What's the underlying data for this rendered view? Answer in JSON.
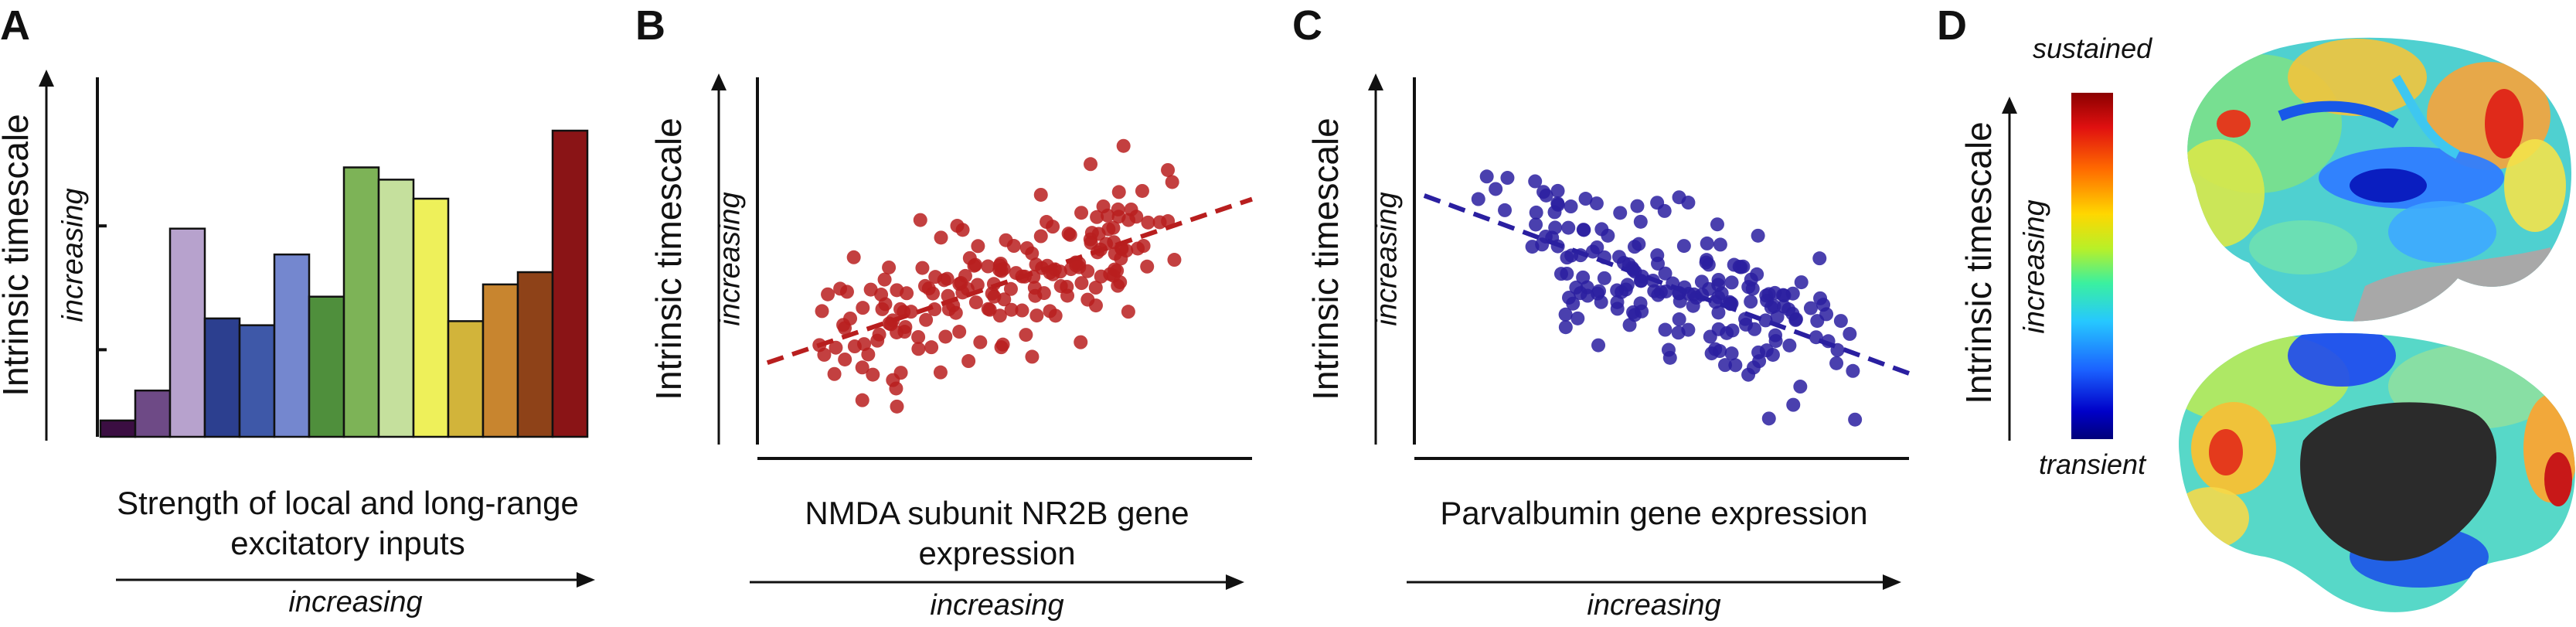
{
  "chart_data": [
    {
      "panel": "A",
      "type": "bar",
      "ylabel": "Intrinsic timescale",
      "y_direction_label": "increasing",
      "xlabel": "Strength of local and long-range excitatory inputs",
      "x_direction_label": "increasing",
      "values": [
        1.2,
        3.4,
        15.3,
        8.7,
        8.2,
        13.4,
        10.3,
        19.8,
        18.9,
        17.5,
        8.5,
        11.2,
        12.1,
        22.5
      ],
      "colors": [
        "#3b0e42",
        "#6e4a86",
        "#b7a2cd",
        "#2c3f8f",
        "#3e58a8",
        "#7487cf",
        "#4f8f3c",
        "#7db357",
        "#c5e09d",
        "#eef05a",
        "#d2b43a",
        "#c8852f",
        "#8e4218",
        "#8a1416"
      ],
      "ylim": [
        0,
        25
      ],
      "y_ticks": [
        6.4,
        15.5
      ]
    },
    {
      "panel": "B",
      "type": "scatter",
      "ylabel": "Intrinsic timescale",
      "y_direction_label": "increasing",
      "xlabel": "NMDA subunit NR2B gene expression",
      "x_direction_label": "increasing",
      "color": "#b81e1e",
      "trend": {
        "x": [
          0.02,
          1.0
        ],
        "y": [
          0.23,
          0.69
        ]
      },
      "points": {
        "seed": 7,
        "count": 185,
        "slope": 0.46,
        "intercept": 0.23,
        "noise": 0.1
      }
    },
    {
      "panel": "C",
      "type": "scatter",
      "ylabel": "Intrinsic timescale",
      "y_direction_label": "increasing",
      "xlabel": "Parvalbumin gene expression",
      "x_direction_label": "increasing",
      "color": "#2a1fa0",
      "trend": {
        "x": [
          0.02,
          1.0
        ],
        "y": [
          0.7,
          0.2
        ]
      },
      "points": {
        "seed": 13,
        "count": 190,
        "slope": -0.5,
        "intercept": 0.71,
        "noise": 0.1
      }
    }
  ],
  "panel_labels": {
    "a": "A",
    "b": "B",
    "c": "C",
    "d": "D"
  },
  "panel_d": {
    "ylabel": "Intrinsic timescale",
    "direction_label": "increasing",
    "colorbar_top": "sustained",
    "colorbar_bottom": "transient"
  }
}
